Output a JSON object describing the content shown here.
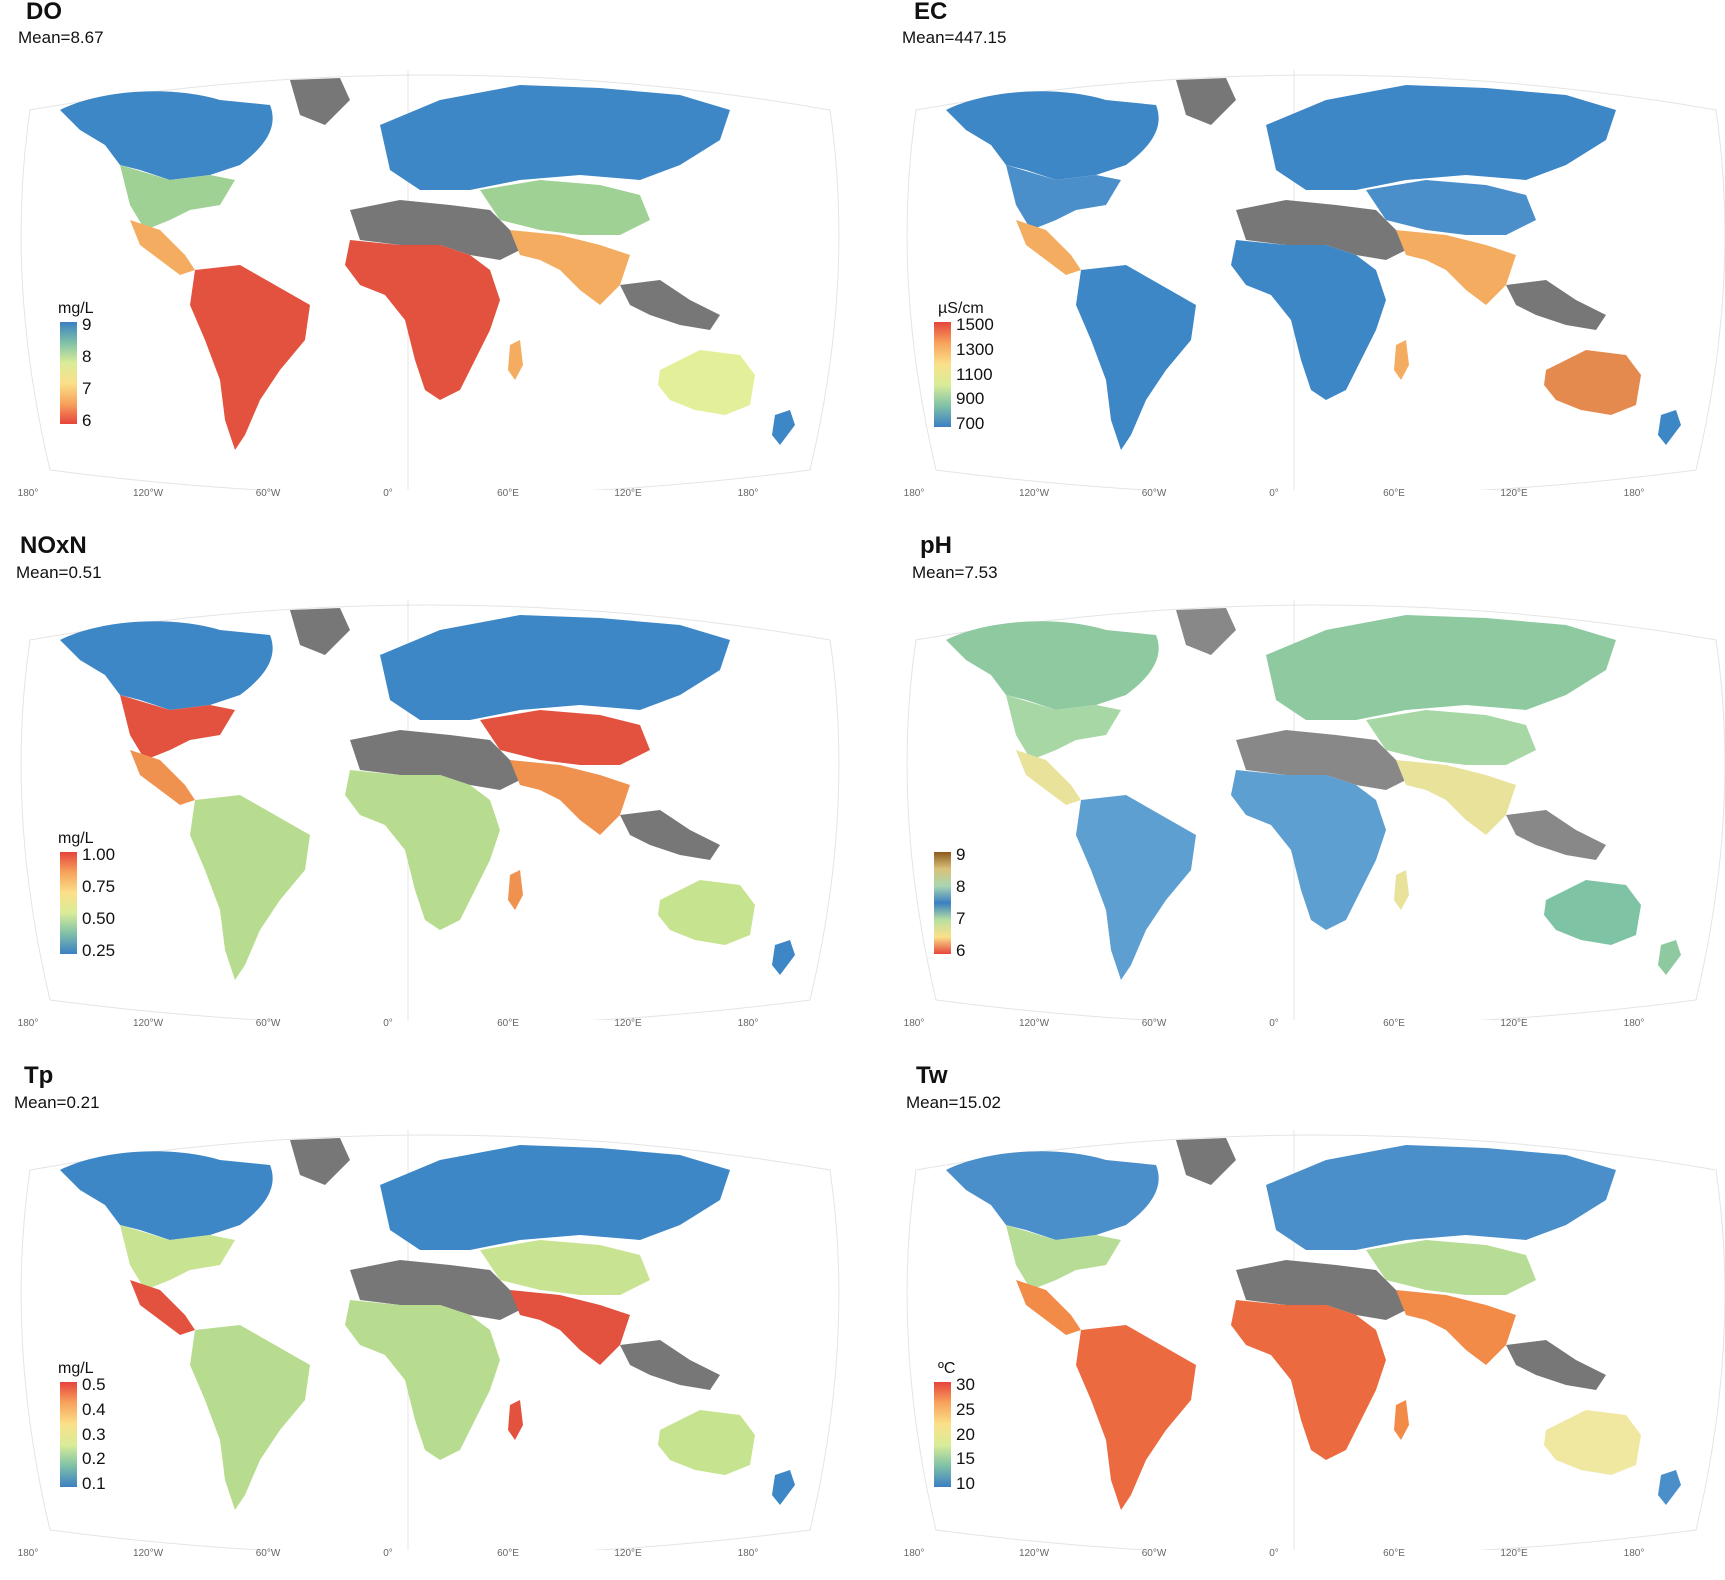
{
  "panels": [
    {
      "id": "DO",
      "title": "DO",
      "mean": "Mean=8.67",
      "unit": "mg/L",
      "ticks": [
        "9",
        "8",
        "7",
        "6"
      ],
      "gradient": [
        "#3b7fc2",
        "#7fc0a8",
        "#d9ec98",
        "#fbe08a",
        "#f7a35c",
        "#e6443c"
      ],
      "colors": {
        "north": "#3d87c7",
        "temperate": "#9fd195",
        "tropical": "#e2523f",
        "arid_edge": "#f4ad60",
        "australia": "#e4ef99",
        "desert": "#777777"
      },
      "lon_labels": [
        "180°",
        "120°W",
        "60°W",
        "0°",
        "60°E",
        "120°E",
        "180°"
      ]
    },
    {
      "id": "EC",
      "title": "EC",
      "mean": "Mean=447.15",
      "unit": "µS/cm",
      "ticks": [
        "1500",
        "1300",
        "1100",
        "900",
        "700"
      ],
      "gradient": [
        "#e6443c",
        "#f7a35c",
        "#fbe08a",
        "#d9ec98",
        "#7fc0a8",
        "#3b7fc2"
      ],
      "colors": {
        "north": "#3d87c7",
        "temperate": "#4a8fca",
        "tropical": "#3d87c7",
        "arid_edge": "#f4ad60",
        "australia": "#e58a4f",
        "desert": "#777777"
      },
      "lon_labels": [
        "180°",
        "120°W",
        "60°W",
        "0°",
        "60°E",
        "120°E",
        "180°"
      ]
    },
    {
      "id": "NOxN",
      "title": "NOxN",
      "mean": "Mean=0.51",
      "unit": "mg/L",
      "ticks": [
        "1.00",
        "0.75",
        "0.50",
        "0.25"
      ],
      "gradient": [
        "#e6443c",
        "#f7a35c",
        "#fbe08a",
        "#d9ec98",
        "#7fc0a8",
        "#3b7fc2"
      ],
      "colors": {
        "north": "#3d87c7",
        "temperate": "#e2523f",
        "tropical": "#b8dc8f",
        "arid_edge": "#f0924f",
        "australia": "#c6e48f",
        "desert": "#777777"
      },
      "lon_labels": [
        "180°",
        "120°W",
        "60°W",
        "0°",
        "60°E",
        "120°E",
        "180°"
      ]
    },
    {
      "id": "pH",
      "title": "pH",
      "mean": "Mean=7.53",
      "unit": "",
      "ticks": [
        "9",
        "8",
        "7",
        "6"
      ],
      "gradient": [
        "#8c5a1e",
        "#d9c27a",
        "#a9d6b1",
        "#3b7fc2",
        "#b8e0a0",
        "#fbe08a",
        "#e6443c"
      ],
      "colors": {
        "north": "#8ec9a0",
        "temperate": "#a6d7a4",
        "tropical": "#5d9fd0",
        "arid_edge": "#e8e29a",
        "australia": "#7fc3a5",
        "desert": "#888888"
      },
      "lon_labels": [
        "180°",
        "120°W",
        "60°W",
        "0°",
        "60°E",
        "120°E",
        "180°"
      ]
    },
    {
      "id": "Tp",
      "title": "Tp",
      "mean": "Mean=0.21",
      "unit": "mg/L",
      "ticks": [
        "0.5",
        "0.4",
        "0.3",
        "0.2",
        "0.1"
      ],
      "gradient": [
        "#e6443c",
        "#f7a35c",
        "#fbe08a",
        "#d9ec98",
        "#7fc0a8",
        "#3b7fc2"
      ],
      "colors": {
        "north": "#3d87c7",
        "temperate": "#c8e392",
        "tropical": "#b8dc8f",
        "arid_edge": "#e2523f",
        "australia": "#c6e48f",
        "desert": "#777777"
      },
      "lon_labels": [
        "180°",
        "120°W",
        "60°W",
        "0°",
        "60°E",
        "120°E",
        "180°"
      ]
    },
    {
      "id": "Tw",
      "title": "Tw",
      "mean": "Mean=15.02",
      "unit": "ºC",
      "ticks": [
        "30",
        "25",
        "20",
        "15",
        "10"
      ],
      "gradient": [
        "#e6443c",
        "#f7a35c",
        "#fbe08a",
        "#d9ec98",
        "#7fc0a8",
        "#3b7fc2"
      ],
      "colors": {
        "north": "#4a8fca",
        "temperate": "#b6dc96",
        "tropical": "#ec6a40",
        "arid_edge": "#f28a48",
        "australia": "#f0e7a0",
        "desert": "#777777"
      },
      "lon_labels": [
        "180°",
        "120°W",
        "60°W",
        "0°",
        "60°E",
        "120°E",
        "180°"
      ]
    }
  ]
}
